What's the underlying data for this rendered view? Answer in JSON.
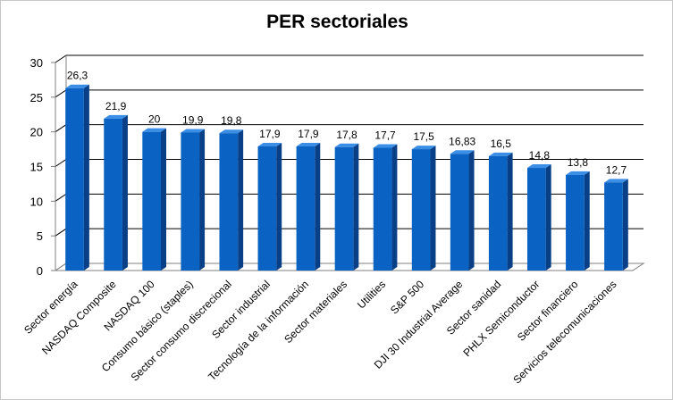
{
  "chart_data": {
    "type": "bar",
    "title": "PER sectoriales",
    "xlabel": "",
    "ylabel": "",
    "ylim": [
      0,
      30
    ],
    "yticks": [
      0,
      5,
      10,
      15,
      20,
      25,
      30
    ],
    "grid": true,
    "legend": "none",
    "categories": [
      "Sector energía",
      "NASDAQ Composite",
      "NASDAQ 100",
      "Consumo básico (staples)",
      "Sector consumo discrecional",
      "Sector industrial",
      "Tecnología de la información",
      "Sector materiales",
      "Utilities",
      "S&P 500",
      "DJI 30 Industrial Average",
      "Sector sanidad",
      "PHLX Semiconductor",
      "Sector financiero",
      "Servicios telecomunicaciones"
    ],
    "values": [
      26.3,
      21.9,
      20,
      19.9,
      19.8,
      17.9,
      17.9,
      17.8,
      17.7,
      17.5,
      16.83,
      16.5,
      14.8,
      13.8,
      12.7
    ],
    "data_labels": [
      "26,3",
      "21,9",
      "20",
      "19,9",
      "19,8",
      "17,9",
      "17,9",
      "17,8",
      "17,7",
      "17,5",
      "16,83",
      "16,5",
      "14,8",
      "13,8",
      "12,7"
    ],
    "colors": {
      "bar_front": "#0a62c2",
      "bar_top": "#3b8ee6",
      "bar_side": "#083f86",
      "grid": "#000000",
      "axis": "#7f7f7f"
    }
  }
}
